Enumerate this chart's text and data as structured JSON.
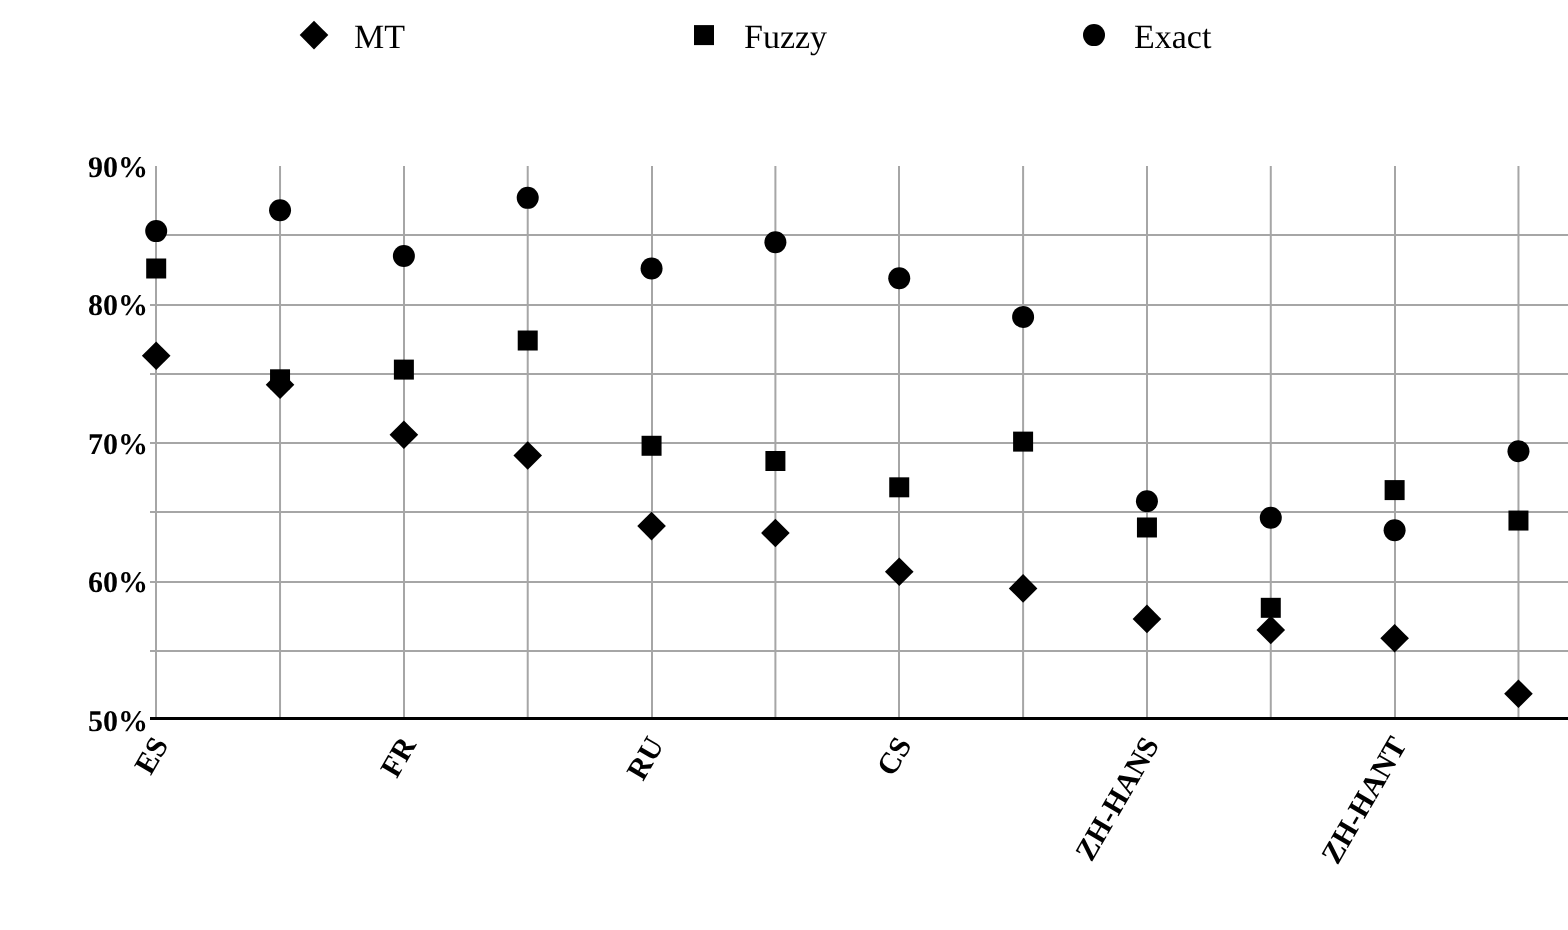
{
  "chart_data": {
    "type": "scatter",
    "categories": [
      "ES",
      null,
      "FR",
      null,
      "RU",
      null,
      "CS",
      null,
      "ZH-HANS",
      null,
      "ZH-HANT",
      null
    ],
    "series": [
      {
        "name": "MT",
        "color": "#000000",
        "marker": "diamond",
        "values": [
          76.3,
          74.2,
          70.6,
          69.1,
          64.0,
          63.5,
          60.7,
          59.5,
          57.3,
          56.5,
          55.9,
          51.9
        ]
      },
      {
        "name": "Fuzzy",
        "color": "#000000",
        "marker": "square",
        "values": [
          82.6,
          74.6,
          75.3,
          77.4,
          69.8,
          68.7,
          66.8,
          70.1,
          63.9,
          58.1,
          66.6,
          64.4
        ]
      },
      {
        "name": "Exact",
        "color": "#000000",
        "marker": "circle",
        "values": [
          85.3,
          86.8,
          83.5,
          87.7,
          82.6,
          84.5,
          81.9,
          79.1,
          65.8,
          64.6,
          63.7,
          69.4
        ]
      }
    ],
    "ylim": [
      50,
      90
    ],
    "yticks": [
      {
        "value": 50,
        "label": "50%"
      },
      {
        "value": 55,
        "label": null
      },
      {
        "value": 60,
        "label": "60%"
      },
      {
        "value": 65,
        "label": null
      },
      {
        "value": 70,
        "label": "70%"
      },
      {
        "value": 75,
        "label": null
      },
      {
        "value": 80,
        "label": "80%"
      },
      {
        "value": 85,
        "label": null
      },
      {
        "value": 90,
        "label": "90%"
      }
    ],
    "grid": true,
    "legend": "top"
  }
}
